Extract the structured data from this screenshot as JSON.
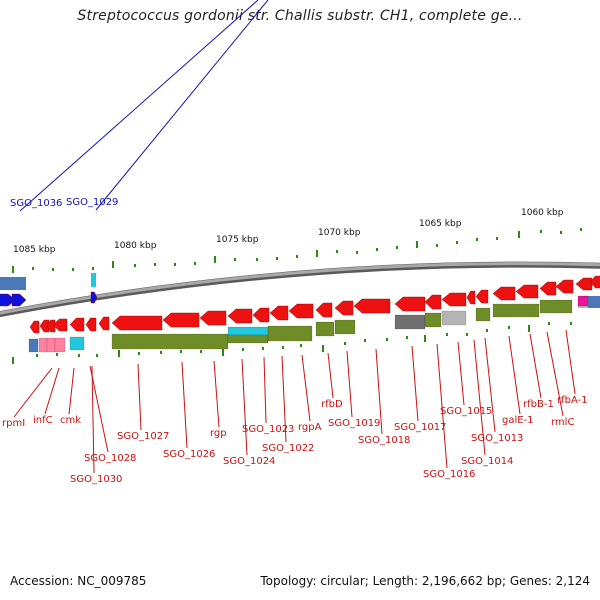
{
  "title": "Streptococcus gordonii str. Challis substr. CH1, complete ge...",
  "footer": {
    "accession": "Accession: NC_009785",
    "topology": "Topology: circular; Length: 2,196,662 bp; Genes: 2,124"
  },
  "colors": {
    "backbone": "#8c8c8c",
    "gene_forward": "#ee1111",
    "gene_forward_light": "#ff9090",
    "gene_top_blue": "#1111dd",
    "gene_top_steel": "#4a78b8",
    "cds_olive": "#6e8c28",
    "cds_cyan": "#22c8dc",
    "cds_gray": "#707070",
    "cds_lightgray": "#b4b4b4",
    "cds_steel": "#4a78b8",
    "cds_pink": "#ff80a0",
    "cds_magenta": "#ee1199",
    "tick_green": "#2a8a14",
    "label_red": "#cc1111",
    "label_blue": "#1111bb"
  },
  "scale_labels": [
    "1085 kbp",
    "1080 kbp",
    "1075 kbp",
    "1070 kbp",
    "1065 kbp",
    "1060 kbp"
  ],
  "top_labels": [
    "SGO_1036",
    "SGO_1029"
  ],
  "bottom_labels": [
    "rpmI",
    "infC",
    "cmk",
    "SGO_1028",
    "SGO_1030",
    "SGO_1027",
    "SGO_1026",
    "rgp",
    "SGO_1024",
    "SGO_1023",
    "SGO_1022",
    "rgpA",
    "rfbD",
    "SGO_1019",
    "SGO_1018",
    "SGO_1017",
    "SGO_1016",
    "SGO_1015",
    "SGO_1014",
    "SGO_1013",
    "galE-1",
    "rfbB-1",
    "rmlC",
    "rfbA-1"
  ]
}
